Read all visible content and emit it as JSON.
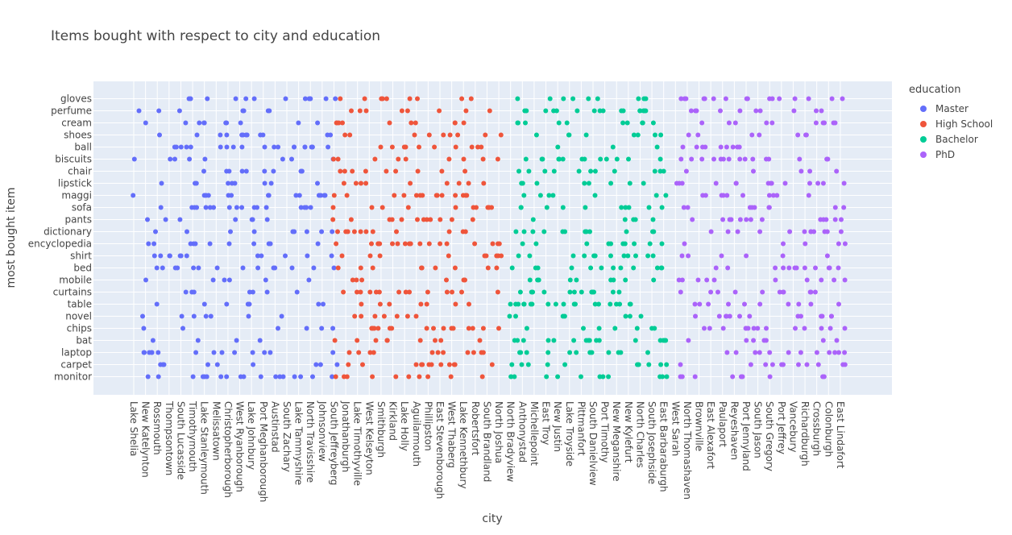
{
  "chart_data": {
    "type": "scatter",
    "title": "Items bought with respect to city and education",
    "xlabel": "city",
    "ylabel": "most bought item",
    "legend_title": "education",
    "legend_position": "right",
    "grid": true,
    "categories_y": [
      "monitor",
      "carpet",
      "laptop",
      "bat",
      "chips",
      "novel",
      "table",
      "curtains",
      "mobile",
      "bed",
      "shirt",
      "encyclopedia",
      "dictionary",
      "pants",
      "sofa",
      "maggi",
      "lipstick",
      "chair",
      "biscuits",
      "ball",
      "shoes",
      "cream",
      "perfume",
      "gloves"
    ],
    "x_tick_labels": [
      "Lake Shelia",
      "New Katelynton",
      "Rossmouth",
      "Thompsontown",
      "South Lucasside",
      "Timothymouth",
      "Lake Stanleymouth",
      "Melissatown",
      "Christopherborough",
      "West Ryanborough",
      "Lake Johnbury",
      "Port Meghanborough",
      "Austinstad",
      "South Zachary",
      "Lake Tammyshire",
      "North Travisshire",
      "Johnsonview",
      "South Jeffreyberg",
      "Jonathanburgh",
      "Lake Timothyville",
      "West Kelseyton",
      "Smithburgh",
      "Kirkland",
      "Lake Holly",
      "Aguilarmouth",
      "Phillipston",
      "East Stevenborough",
      "West Thaberg",
      "Lake Kennethbury",
      "Robertsfort",
      "South Brandland",
      "North Joshua",
      "North Bradyview",
      "Anthonystad",
      "Michellepoint",
      "East Troy",
      "New Justin",
      "Lake Troyside",
      "Pittmanfort",
      "South Danielview",
      "Port Timothy",
      "New Meganshire",
      "New Kylefurt",
      "North Charles",
      "South Josephside",
      "East Barbaraburgh",
      "West Sarah",
      "North Thomashaven",
      "Brownville",
      "East Alexafort",
      "Paulaport",
      "Reyeshaven",
      "Port Jennyland",
      "South Jason",
      "South Gregory",
      "Port Jeffrey",
      "Vancebury",
      "Richardburgh",
      "Crossburgh",
      "Colonburgh",
      "East Lindafort"
    ],
    "series": [
      {
        "name": "Master",
        "color": "#636efa"
      },
      {
        "name": "High School",
        "color": "#ef553b"
      },
      {
        "name": "Bachelor",
        "color": "#00cc96"
      },
      {
        "name": "PhD",
        "color": "#ab63fa"
      }
    ],
    "x_range_by_series": {
      "Master": [
        "Lake Shelia",
        "South Jeffreyberg"
      ],
      "High School": [
        "South Jeffreyberg",
        "North Joshua"
      ],
      "Bachelor": [
        "North Bradyview",
        "East Barbaraburgh"
      ],
      "PhD": [
        "West Sarah",
        "East Lindafort"
      ]
    },
    "point_count_approx": 1000
  }
}
